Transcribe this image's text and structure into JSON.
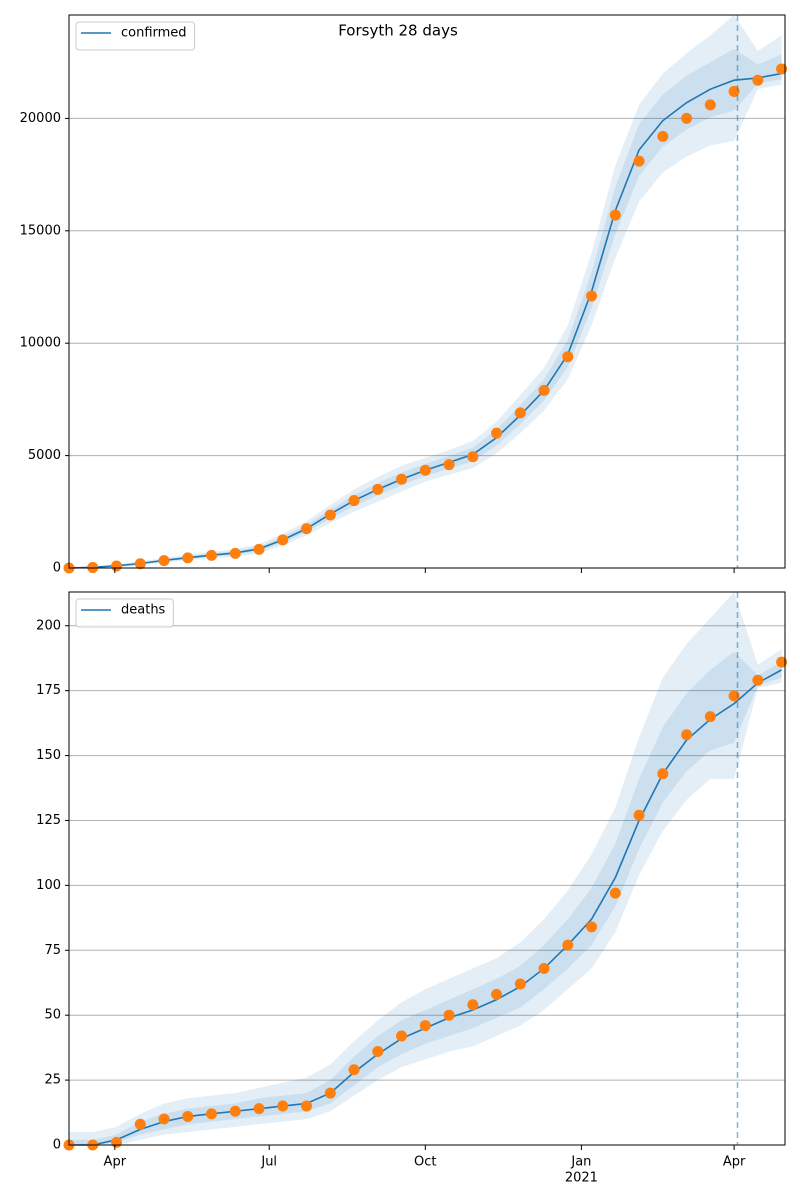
{
  "chart_data": [
    {
      "type": "line",
      "title": "Forsyth 28 days",
      "x": [
        0,
        14,
        28,
        42,
        56,
        70,
        84,
        98,
        112,
        126,
        140,
        154,
        168,
        182,
        196,
        210,
        224,
        238,
        252,
        266,
        280,
        294,
        308,
        322,
        336,
        350,
        364,
        378,
        392,
        406,
        420
      ],
      "xlim": [
        0,
        422
      ],
      "ylim": [
        0,
        24600
      ],
      "yticks": [
        0,
        5000,
        10000,
        15000,
        20000
      ],
      "grid": true,
      "legend": "upper left",
      "forecast_start": 394,
      "series": [
        {
          "name": "confirmed",
          "color": "#1f77b4",
          "values": [
            0,
            30,
            100,
            200,
            340,
            460,
            570,
            670,
            850,
            1250,
            1750,
            2400,
            3000,
            3500,
            3950,
            4350,
            4700,
            5050,
            5800,
            6800,
            7900,
            9500,
            12300,
            15900,
            18600,
            19900,
            20700,
            21300,
            21700,
            21800,
            22000
          ]
        },
        {
          "color": "#ff7f0e",
          "marker": "o",
          "values": [
            0,
            20,
            90,
            190,
            330,
            450,
            560,
            650,
            830,
            1250,
            1750,
            2360,
            3000,
            3500,
            3950,
            4350,
            4600,
            4950,
            6000,
            6900,
            7900,
            9400,
            12100,
            15700,
            18100,
            19200,
            20000,
            20600,
            21200,
            21700,
            22200
          ]
        }
      ],
      "bands": [
        {
          "color": "#1f77b4",
          "lower": [
            0,
            0,
            40,
            120,
            240,
            340,
            430,
            500,
            650,
            1000,
            1450,
            2000,
            2500,
            2950,
            3400,
            3850,
            4150,
            4450,
            5100,
            6000,
            7000,
            8400,
            10800,
            13800,
            16300,
            17600,
            18300,
            18800,
            19000,
            21300,
            21500
          ],
          "upper": [
            0,
            60,
            160,
            290,
            450,
            590,
            720,
            840,
            1060,
            1520,
            2080,
            2800,
            3500,
            4050,
            4550,
            4900,
            5250,
            5650,
            6500,
            7700,
            8900,
            10800,
            14000,
            17900,
            20600,
            22000,
            22900,
            23700,
            24600,
            23000,
            23700
          ]
        },
        {
          "color": "#1f77b4",
          "lower": [
            0,
            15,
            70,
            160,
            290,
            400,
            500,
            590,
            750,
            1130,
            1600,
            2200,
            2750,
            3230,
            3680,
            4100,
            4420,
            4750,
            5450,
            6400,
            7450,
            8950,
            11550,
            14850,
            17450,
            18750,
            19500,
            20050,
            20350,
            21550,
            21750
          ],
          "upper": [
            0,
            45,
            130,
            245,
            395,
            525,
            645,
            755,
            955,
            1390,
            1920,
            2600,
            3250,
            3780,
            4250,
            4630,
            4980,
            5350,
            6150,
            7250,
            8400,
            10150,
            13150,
            16950,
            19750,
            21050,
            21900,
            22500,
            23100,
            22400,
            22850
          ]
        }
      ]
    },
    {
      "type": "line",
      "x": [
        0,
        14,
        28,
        42,
        56,
        70,
        84,
        98,
        112,
        126,
        140,
        154,
        168,
        182,
        196,
        210,
        224,
        238,
        252,
        266,
        280,
        294,
        308,
        322,
        336,
        350,
        364,
        378,
        392,
        406,
        420
      ],
      "xlim": [
        0,
        422
      ],
      "xticks": [
        {
          "value": 27,
          "label": "Apr"
        },
        {
          "value": 118,
          "label": "Jul"
        },
        {
          "value": 210,
          "label": "Oct"
        },
        {
          "value": 302,
          "label": "Jan"
        },
        {
          "value": 392,
          "label": "Apr"
        }
      ],
      "x_sublabels": [
        {
          "value": 302,
          "label": "2021"
        }
      ],
      "ylim": [
        0,
        213
      ],
      "yticks": [
        0,
        25,
        50,
        75,
        100,
        125,
        150,
        175,
        200
      ],
      "grid": true,
      "legend": "upper left",
      "forecast_start": 394,
      "series": [
        {
          "name": "deaths",
          "color": "#1f77b4",
          "values": [
            0,
            0,
            2,
            6,
            9,
            11,
            12,
            13,
            14,
            15,
            16,
            20,
            28,
            35,
            41,
            45,
            49,
            52,
            56,
            61,
            68,
            77,
            87,
            103,
            125,
            143,
            156,
            164,
            170,
            178,
            183
          ]
        },
        {
          "color": "#ff7f0e",
          "marker": "o",
          "values": [
            0,
            0,
            1,
            8,
            10,
            11,
            12,
            13,
            14,
            15,
            15,
            20,
            29,
            36,
            42,
            46,
            50,
            54,
            58,
            62,
            68,
            77,
            84,
            97,
            127,
            143,
            158,
            165,
            173,
            179,
            186
          ]
        }
      ],
      "bands": [
        {
          "color": "#1f77b4",
          "lower": [
            0,
            0,
            0,
            2,
            4,
            5,
            6,
            7,
            8,
            9,
            10,
            13,
            19,
            25,
            30,
            33,
            36,
            38,
            42,
            46,
            52,
            60,
            68,
            82,
            104,
            121,
            133,
            141,
            141,
            176,
            178
          ],
          "upper": [
            5,
            5,
            7,
            12,
            16,
            18,
            19,
            20,
            22,
            24,
            26,
            31,
            40,
            48,
            55,
            60,
            64,
            68,
            72,
            78,
            87,
            98,
            112,
            130,
            157,
            180,
            193,
            203,
            213,
            185,
            191
          ]
        },
        {
          "color": "#1f77b4",
          "lower": [
            0,
            0,
            1,
            4,
            6,
            8,
            9,
            10,
            11,
            12,
            13,
            16,
            23,
            30,
            35,
            39,
            42,
            45,
            49,
            53,
            60,
            68,
            77,
            92,
            114,
            132,
            144,
            152,
            155,
            177,
            180
          ],
          "upper": [
            2,
            2,
            4,
            9,
            12,
            14,
            15,
            16,
            18,
            19,
            20,
            25,
            34,
            42,
            48,
            52,
            56,
            60,
            64,
            69,
            77,
            87,
            99,
            116,
            141,
            161,
            174,
            183,
            190,
            181,
            186
          ]
        }
      ]
    }
  ]
}
